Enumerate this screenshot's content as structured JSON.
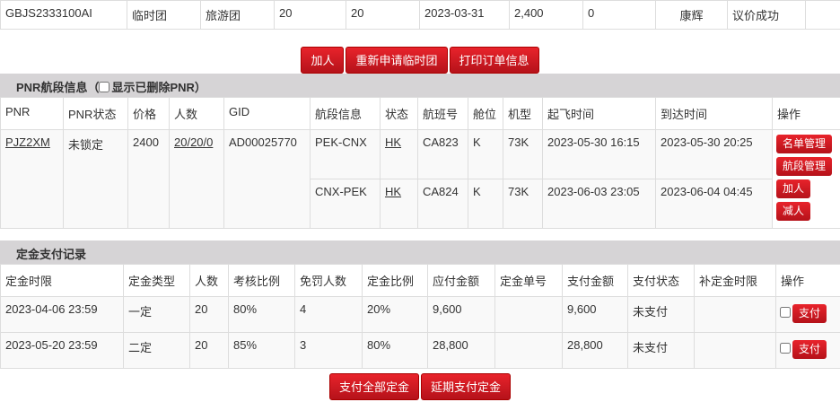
{
  "order_row": [
    "GBJS2333100AI",
    "临时团",
    "旅游团",
    "20",
    "20",
    "2023-03-31",
    "2,400",
    "0",
    "康辉",
    "议价成功",
    ""
  ],
  "order_buttons": [
    "加人",
    "重新申请临时团",
    "打印订单信息"
  ],
  "pnr_section": {
    "title": "PNR航段信息（",
    "checkbox_label": "显示已删除PNR",
    "title_end": "）",
    "show_deleted": false
  },
  "pnr_headers": [
    "PNR",
    "PNR状态",
    "价格",
    "人数",
    "GID",
    "航段信息",
    "状态",
    "航班号",
    "舱位",
    "机型",
    "起飞时间",
    "到达时间",
    "操作"
  ],
  "pnr": {
    "pnr": "PJZ2XM",
    "status": "未锁定",
    "price": "2400",
    "people": "20/20/0",
    "gid": "AD00025770",
    "segments": [
      {
        "route": "PEK-CNX",
        "status": "HK",
        "flight": "CA823",
        "cabin": "K",
        "aircraft": "73K",
        "dep": "2023-05-30 16:15",
        "arr": "2023-05-30 20:25"
      },
      {
        "route": "CNX-PEK",
        "status": "HK",
        "flight": "CA824",
        "cabin": "K",
        "aircraft": "73K",
        "dep": "2023-06-03 23:05",
        "arr": "2023-06-04 04:45"
      }
    ],
    "actions": [
      "名单管理",
      "航段管理",
      "加人",
      "减人"
    ]
  },
  "deposit_section": {
    "title": "定金支付记录"
  },
  "deposit_headers": [
    "定金时限",
    "定金类型",
    "人数",
    "考核比例",
    "免罚人数",
    "定金比例",
    "应付金额",
    "定金单号",
    "支付金额",
    "支付状态",
    "补定金时限",
    "操作"
  ],
  "deposit_rows": [
    {
      "cells": [
        "2023-04-06 23:59",
        "一定",
        "20",
        "80%",
        "4",
        "20%",
        "9,600",
        "",
        "9,600",
        "未支付",
        ""
      ],
      "pay_label": "支付",
      "checked": false
    },
    {
      "cells": [
        "2023-05-20 23:59",
        "二定",
        "20",
        "85%",
        "3",
        "80%",
        "28,800",
        "",
        "28,800",
        "未支付",
        ""
      ],
      "pay_label": "支付",
      "checked": false
    }
  ],
  "deposit_buttons": [
    "支付全部定金",
    "延期支付定金"
  ],
  "colors": {
    "button_red": "#d01820",
    "section_gray": "#d6d4d6"
  }
}
